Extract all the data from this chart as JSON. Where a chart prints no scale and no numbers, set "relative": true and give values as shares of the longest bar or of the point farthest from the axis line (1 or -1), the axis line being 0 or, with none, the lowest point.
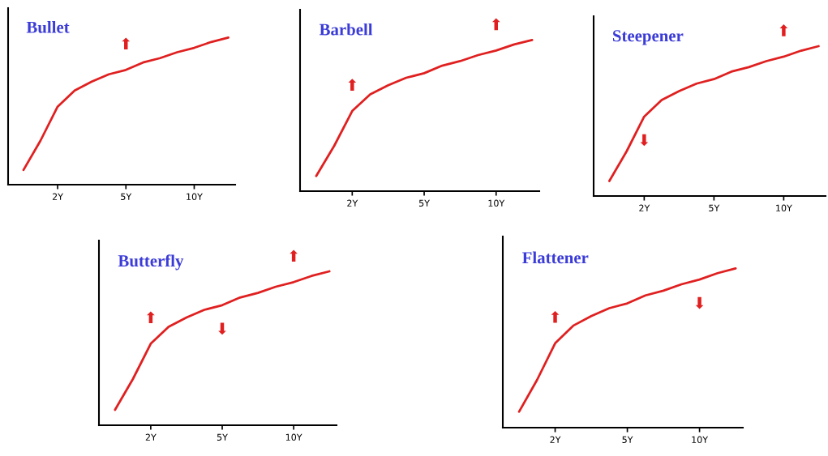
{
  "chart_data": [
    {
      "type": "line",
      "title": "Bullet",
      "relative": true,
      "tick_labels": "x",
      "categories": [
        null,
        null,
        "2Y",
        null,
        null,
        null,
        "5Y",
        null,
        null,
        null,
        "10Y",
        null,
        null
      ],
      "series": [
        {
          "color": "#e02020",
          "values": [
            0.1,
            0.3,
            0.53,
            0.64,
            0.7,
            0.75,
            0.78,
            0.83,
            0.86,
            0.9,
            0.93,
            0.97,
            1.0
          ]
        }
      ],
      "annotations": [
        {
          "text": "⬆",
          "x": "5Y",
          "y": 0.78
        }
      ]
    },
    {
      "type": "line",
      "title": "Barbell",
      "relative": true,
      "tick_labels": "x",
      "categories": [
        null,
        null,
        "2Y",
        null,
        null,
        null,
        "5Y",
        null,
        null,
        null,
        "10Y",
        null,
        null
      ],
      "series": [
        {
          "color": "#e02020",
          "values": [
            0.1,
            0.3,
            0.53,
            0.64,
            0.7,
            0.75,
            0.78,
            0.83,
            0.86,
            0.9,
            0.93,
            0.97,
            1.0
          ]
        }
      ],
      "annotations": [
        {
          "text": "⬆",
          "x": "2Y",
          "y": 0.53
        },
        {
          "text": "⬆",
          "x": "10Y",
          "y": 0.93
        }
      ]
    },
    {
      "type": "line",
      "title": "Steepener",
      "relative": true,
      "tick_labels": "x",
      "categories": [
        null,
        null,
        "2Y",
        null,
        null,
        null,
        "5Y",
        null,
        null,
        null,
        "10Y",
        null,
        null
      ],
      "series": [
        {
          "color": "#e02020",
          "values": [
            0.1,
            0.3,
            0.53,
            0.64,
            0.7,
            0.75,
            0.78,
            0.83,
            0.86,
            0.9,
            0.93,
            0.97,
            1.0
          ]
        }
      ],
      "annotations": [
        {
          "text": "⬇",
          "x": "2Y",
          "y": 0.53
        },
        {
          "text": "⬆",
          "x": "10Y",
          "y": 0.93
        }
      ]
    },
    {
      "type": "line",
      "title": "Butterfly",
      "relative": true,
      "tick_labels": "x",
      "categories": [
        null,
        null,
        "2Y",
        null,
        null,
        null,
        "5Y",
        null,
        null,
        null,
        "10Y",
        null,
        null
      ],
      "series": [
        {
          "color": "#e02020",
          "values": [
            0.1,
            0.3,
            0.53,
            0.64,
            0.7,
            0.75,
            0.78,
            0.83,
            0.86,
            0.9,
            0.93,
            0.97,
            1.0
          ]
        }
      ],
      "annotations": [
        {
          "text": "⬆",
          "x": "2Y",
          "y": 0.53
        },
        {
          "text": "⬇",
          "x": "5Y",
          "y": 0.78
        },
        {
          "text": "⬆",
          "x": "10Y",
          "y": 0.93
        }
      ]
    },
    {
      "type": "line",
      "title": "Flattener",
      "relative": true,
      "tick_labels": "x",
      "categories": [
        null,
        null,
        "2Y",
        null,
        null,
        null,
        "5Y",
        null,
        null,
        null,
        "10Y",
        null,
        null
      ],
      "series": [
        {
          "color": "#e02020",
          "values": [
            0.1,
            0.3,
            0.53,
            0.64,
            0.7,
            0.75,
            0.78,
            0.83,
            0.86,
            0.9,
            0.93,
            0.97,
            1.0
          ]
        }
      ],
      "annotations": [
        {
          "text": "⬆",
          "x": "2Y",
          "y": 0.53
        },
        {
          "text": "⬇",
          "x": "10Y",
          "y": 0.93
        }
      ]
    }
  ]
}
